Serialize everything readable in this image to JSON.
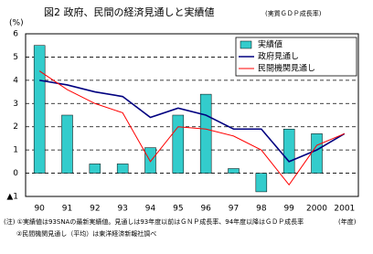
{
  "chart_data": {
    "type": "bar-line",
    "title": "図2 政府、民間の経済見通しと実績値",
    "subtitle": "(実質ＧＤＰ成長率)",
    "y_label": "(%)",
    "x_label": "(年度)",
    "notes": [
      "(注) ①実績値は93SNAの最新実績値。見通しは93年度以前はＧＮＰ成長率、94年度以降はＧＤＰ成長率",
      "②民間機関見通し（平均）は東洋経済新報社調べ"
    ],
    "categories": [
      "90",
      "91",
      "92",
      "93",
      "94",
      "95",
      "96",
      "97",
      "98",
      "99",
      "2000",
      "2001"
    ],
    "series": [
      {
        "name": "実績値",
        "kind": "bar",
        "color": "#33cccc",
        "values": [
          5.5,
          2.5,
          0.4,
          0.4,
          1.1,
          2.5,
          3.4,
          0.2,
          -0.8,
          1.9,
          1.7,
          null
        ]
      },
      {
        "name": "政府見通し",
        "kind": "line",
        "color": "#000080",
        "values": [
          4.0,
          3.8,
          3.5,
          3.3,
          2.4,
          2.8,
          2.5,
          1.9,
          1.9,
          0.5,
          1.0,
          1.7
        ]
      },
      {
        "name": "民間機関見通し",
        "kind": "line",
        "color": "#ff0000",
        "values": [
          4.4,
          3.6,
          3.0,
          2.6,
          0.5,
          2.0,
          1.9,
          1.6,
          1.0,
          -0.5,
          1.2,
          1.7
        ]
      }
    ],
    "ylim": [
      -1,
      6
    ],
    "yticks": [
      {
        "value": -1,
        "label": "▲1"
      },
      0,
      1,
      2,
      3,
      4,
      5,
      6
    ],
    "grid": true
  }
}
